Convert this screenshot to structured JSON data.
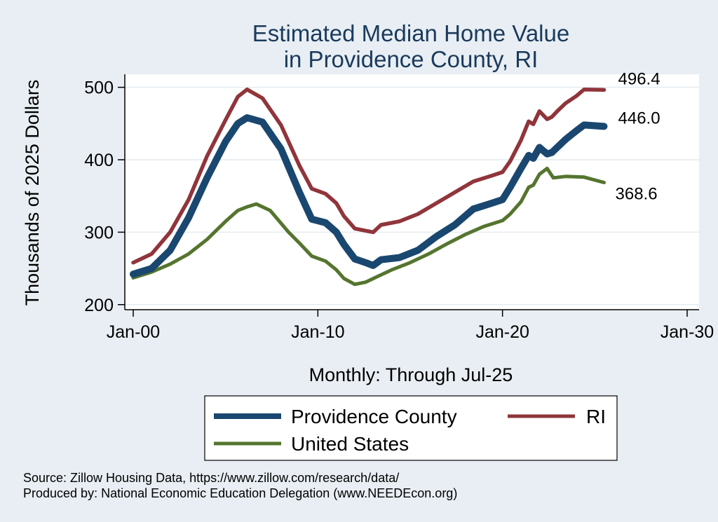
{
  "chart_data": {
    "type": "line",
    "title": [
      "Estimated Median Home Value",
      "in Providence County, RI"
    ],
    "xlabel": "Monthly: Through Jul-25",
    "ylabel": "Thousands of 2025 Dollars",
    "x_ticks": [
      "Jan-00",
      "Jan-10",
      "Jan-20",
      "Jan-30"
    ],
    "y_ticks": [
      200,
      300,
      400,
      500
    ],
    "xlim": [
      "2000-01",
      "2030-01"
    ],
    "ylim": [
      193,
      518
    ],
    "grid": true,
    "legend_position": "bottom",
    "series": [
      {
        "name": "Providence County",
        "color": "#1a476f",
        "end_label": "446.0",
        "points": [
          [
            "2000-01",
            242
          ],
          [
            "2001-01",
            250
          ],
          [
            "2002-01",
            275
          ],
          [
            "2003-01",
            320
          ],
          [
            "2004-01",
            375
          ],
          [
            "2005-01",
            425
          ],
          [
            "2005-09",
            450
          ],
          [
            "2006-03",
            458
          ],
          [
            "2007-01",
            452
          ],
          [
            "2008-01",
            415
          ],
          [
            "2009-01",
            355
          ],
          [
            "2009-09",
            318
          ],
          [
            "2010-06",
            313
          ],
          [
            "2011-01",
            300
          ],
          [
            "2011-06",
            283
          ],
          [
            "2012-01",
            263
          ],
          [
            "2012-08",
            258
          ],
          [
            "2013-01",
            254
          ],
          [
            "2013-06",
            262
          ],
          [
            "2014-06",
            265
          ],
          [
            "2015-06",
            275
          ],
          [
            "2016-06",
            294
          ],
          [
            "2017-06",
            310
          ],
          [
            "2018-06",
            332
          ],
          [
            "2019-06",
            340
          ],
          [
            "2020-01",
            345
          ],
          [
            "2020-06",
            362
          ],
          [
            "2021-01",
            388
          ],
          [
            "2021-06",
            406
          ],
          [
            "2021-09",
            402
          ],
          [
            "2022-01",
            417
          ],
          [
            "2022-06",
            408
          ],
          [
            "2022-09",
            410
          ],
          [
            "2023-01",
            418
          ],
          [
            "2023-06",
            428
          ],
          [
            "2024-01",
            440
          ],
          [
            "2024-06",
            448
          ],
          [
            "2025-07",
            446
          ]
        ]
      },
      {
        "name": "RI",
        "color": "#90353b",
        "end_label": "496.4",
        "points": [
          [
            "2000-01",
            258
          ],
          [
            "2001-01",
            270
          ],
          [
            "2002-01",
            300
          ],
          [
            "2003-01",
            345
          ],
          [
            "2004-01",
            405
          ],
          [
            "2005-01",
            455
          ],
          [
            "2005-09",
            487
          ],
          [
            "2006-03",
            497
          ],
          [
            "2007-01",
            485
          ],
          [
            "2008-01",
            448
          ],
          [
            "2009-01",
            392
          ],
          [
            "2009-09",
            360
          ],
          [
            "2010-06",
            353
          ],
          [
            "2011-01",
            340
          ],
          [
            "2011-06",
            322
          ],
          [
            "2012-01",
            305
          ],
          [
            "2012-08",
            302
          ],
          [
            "2013-01",
            300
          ],
          [
            "2013-06",
            310
          ],
          [
            "2014-06",
            315
          ],
          [
            "2015-06",
            325
          ],
          [
            "2016-06",
            340
          ],
          [
            "2017-06",
            355
          ],
          [
            "2018-06",
            370
          ],
          [
            "2019-06",
            378
          ],
          [
            "2020-01",
            383
          ],
          [
            "2020-06",
            398
          ],
          [
            "2021-01",
            427
          ],
          [
            "2021-06",
            453
          ],
          [
            "2021-09",
            449
          ],
          [
            "2022-01",
            467
          ],
          [
            "2022-06",
            456
          ],
          [
            "2022-09",
            459
          ],
          [
            "2023-01",
            468
          ],
          [
            "2023-06",
            478
          ],
          [
            "2024-01",
            488
          ],
          [
            "2024-06",
            497
          ],
          [
            "2025-07",
            496.4
          ]
        ]
      },
      {
        "name": "United States",
        "color": "#55752f",
        "end_label": "368.6",
        "points": [
          [
            "2000-01",
            237
          ],
          [
            "2001-01",
            245
          ],
          [
            "2002-01",
            256
          ],
          [
            "2003-01",
            270
          ],
          [
            "2004-01",
            290
          ],
          [
            "2005-01",
            315
          ],
          [
            "2005-09",
            330
          ],
          [
            "2006-03",
            335
          ],
          [
            "2006-09",
            339
          ],
          [
            "2007-06",
            330
          ],
          [
            "2008-06",
            300
          ],
          [
            "2009-01",
            285
          ],
          [
            "2009-09",
            267
          ],
          [
            "2010-06",
            260
          ],
          [
            "2011-01",
            248
          ],
          [
            "2011-06",
            236
          ],
          [
            "2012-01",
            228
          ],
          [
            "2012-08",
            231
          ],
          [
            "2013-01",
            236
          ],
          [
            "2014-01",
            248
          ],
          [
            "2015-01",
            258
          ],
          [
            "2016-01",
            270
          ],
          [
            "2017-01",
            284
          ],
          [
            "2018-01",
            297
          ],
          [
            "2019-01",
            308
          ],
          [
            "2020-01",
            316
          ],
          [
            "2020-06",
            325
          ],
          [
            "2021-01",
            342
          ],
          [
            "2021-06",
            362
          ],
          [
            "2021-09",
            365
          ],
          [
            "2022-01",
            380
          ],
          [
            "2022-06",
            388
          ],
          [
            "2022-10",
            375
          ],
          [
            "2023-06",
            377
          ],
          [
            "2024-06",
            376
          ],
          [
            "2025-07",
            368.6
          ]
        ]
      }
    ]
  },
  "footer": {
    "source": "Source: Zillow Housing Data, https://www.zillow.com/research/data/",
    "produced": "Produced by: National Economic Education Delegation (www.NEEDEcon.org)"
  }
}
